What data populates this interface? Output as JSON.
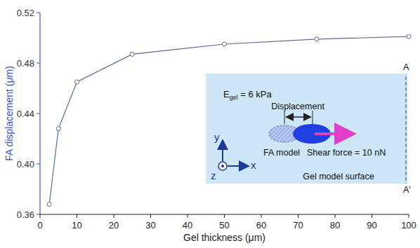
{
  "chart_data": {
    "type": "line",
    "x_label": "Gel thickness (μm)",
    "y_label": "FA displacement (μm)",
    "x": [
      2.5,
      5,
      10,
      25,
      50,
      75,
      100
    ],
    "values": [
      0.368,
      0.428,
      0.465,
      0.487,
      0.495,
      0.499,
      0.501
    ],
    "color": "#5a6a98",
    "marker": "open_circle",
    "line_style": "solid",
    "grid": false,
    "xlim": [
      0,
      100
    ],
    "xticks": [
      0,
      10,
      20,
      30,
      40,
      50,
      60,
      70,
      80,
      90,
      100
    ],
    "ylim": [
      0.36,
      0.52
    ],
    "yticks": [
      0.36,
      {
        "value": 0.4,
        "label": "0.40"
      },
      0.44,
      0.48,
      0.52
    ],
    "annotations": {
      "modulus": [
        "E",
        "gel",
        " = 6 kPa"
      ],
      "displacement": "Displacement",
      "fa_model": "FA model",
      "force": "Shear force = 10 nN",
      "surface": "Gel model surface",
      "axis_x": "x",
      "axis_y": "y",
      "axis_z": "z",
      "line_start": "A",
      "line_end": "A'"
    }
  }
}
